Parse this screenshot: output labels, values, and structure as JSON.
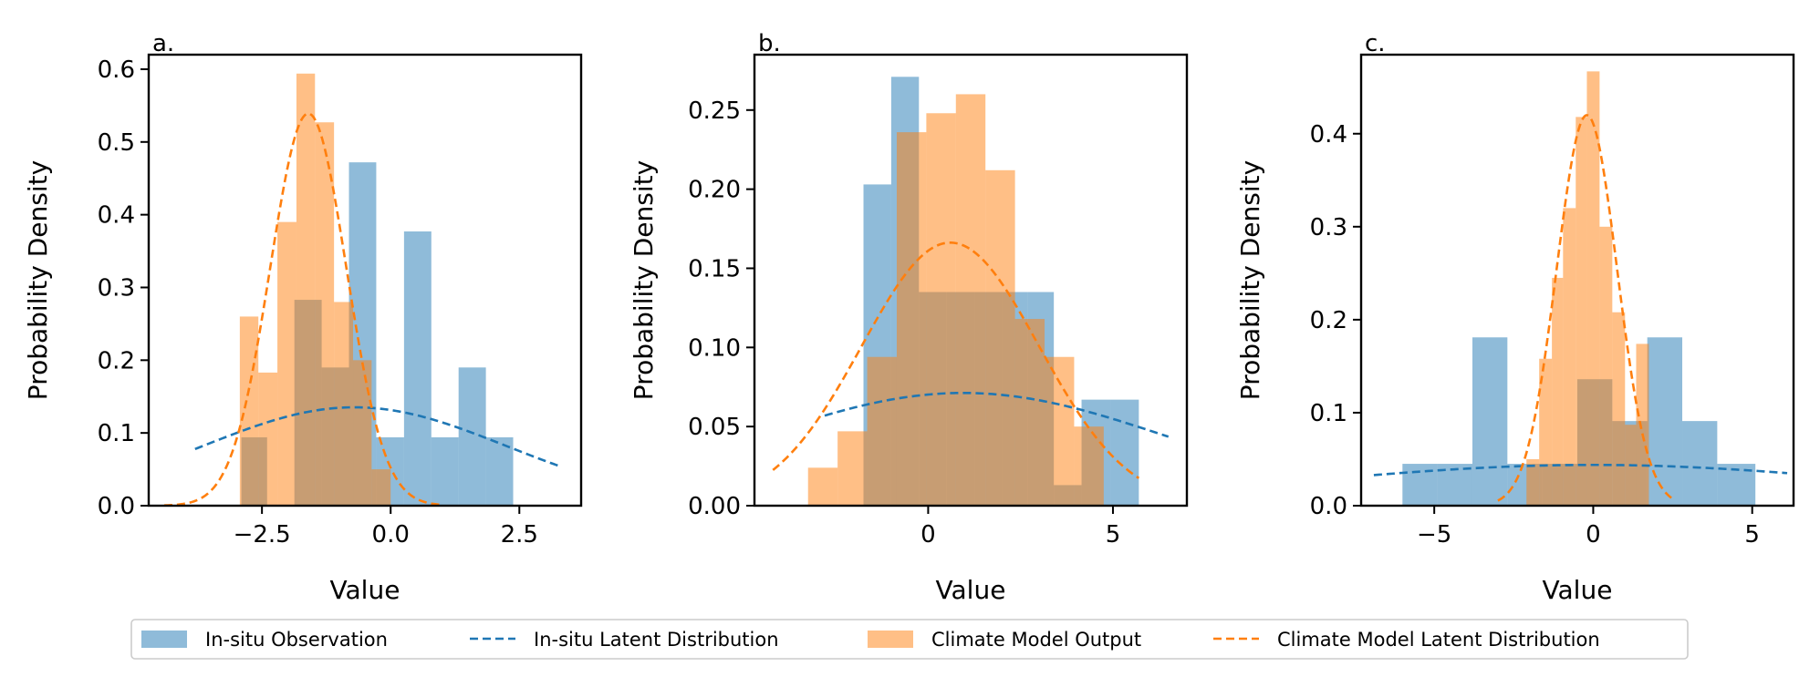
{
  "colors": {
    "insitu": "#1f77b4",
    "model": "#ff7f0e",
    "insitu_hist": "#1f77b4",
    "model_hist": "#ff7f0e",
    "overlap": "#c69c6d"
  },
  "legend": {
    "items": [
      {
        "label": "In-situ Observation",
        "kind": "patch",
        "color": "#1f77b4"
      },
      {
        "label": "In-situ Latent Distribution",
        "kind": "dash",
        "color": "#1f77b4"
      },
      {
        "label": "Climate Model Output",
        "kind": "patch",
        "color": "#ff7f0e"
      },
      {
        "label": "Climate Model Latent Distribution",
        "kind": "dash",
        "color": "#ff7f0e"
      }
    ],
    "placement": "bottom-center"
  },
  "chart_data": [
    {
      "type": "bar",
      "panel": "a.",
      "xlabel": "Value",
      "ylabel": "Probability Density",
      "xlim": [
        -4.7,
        3.7
      ],
      "ylim": [
        0,
        0.62
      ],
      "xticks": [
        -2.5,
        0.0,
        2.5
      ],
      "xtick_labels": [
        "−2.5",
        "0.0",
        "2.5"
      ],
      "yticks": [
        0.0,
        0.1,
        0.2,
        0.3,
        0.4,
        0.5,
        0.6
      ],
      "ytick_labels": [
        "0.0",
        "0.1",
        "0.2",
        "0.3",
        "0.4",
        "0.5",
        "0.6"
      ],
      "series": [
        {
          "name": "In-situ Observation",
          "kind": "hist",
          "bins": [
            [
              -2.9,
              -2.4,
              0.094
            ],
            [
              -2.4,
              -1.87,
              0.0
            ],
            [
              -1.87,
              -1.34,
              0.283
            ],
            [
              -1.34,
              -0.81,
              0.19
            ],
            [
              -0.81,
              -0.28,
              0.472
            ],
            [
              -0.28,
              0.26,
              0.094
            ],
            [
              0.26,
              0.79,
              0.377
            ],
            [
              0.79,
              1.32,
              0.094
            ],
            [
              1.32,
              1.85,
              0.19
            ],
            [
              1.85,
              2.38,
              0.094
            ]
          ]
        },
        {
          "name": "Climate Model Output",
          "kind": "hist",
          "bins": [
            [
              -3.3,
              -2.93,
              0.0
            ],
            [
              -2.93,
              -2.57,
              0.26
            ],
            [
              -2.57,
              -2.2,
              0.183
            ],
            [
              -2.2,
              -1.83,
              0.39
            ],
            [
              -1.83,
              -1.47,
              0.594
            ],
            [
              -1.47,
              -1.1,
              0.527
            ],
            [
              -1.1,
              -0.73,
              0.28
            ],
            [
              -0.73,
              -0.37,
              0.2
            ],
            [
              -0.37,
              0.0,
              0.05
            ]
          ]
        },
        {
          "name": "In-situ Latent Distribution",
          "kind": "curve",
          "mu": -0.7,
          "sigma": 2.95,
          "xrange": [
            -3.8,
            3.3
          ]
        },
        {
          "name": "Climate Model Latent Distribution",
          "kind": "curve",
          "mu": -1.6,
          "sigma": 0.74,
          "xrange": [
            -4.4,
            1.0
          ]
        }
      ]
    },
    {
      "type": "bar",
      "panel": "b.",
      "xlabel": "Value",
      "ylabel": "Probability Density",
      "xlim": [
        -4.7,
        7.0
      ],
      "ylim": [
        0,
        0.285
      ],
      "xticks": [
        0,
        5
      ],
      "xtick_labels": [
        "0",
        "5"
      ],
      "yticks": [
        0.0,
        0.05,
        0.1,
        0.15,
        0.2,
        0.25
      ],
      "ytick_labels": [
        "0.00",
        "0.05",
        "0.10",
        "0.15",
        "0.20",
        "0.25"
      ],
      "series": [
        {
          "name": "In-situ Observation",
          "kind": "hist",
          "bins": [
            [
              -1.75,
              -1.0,
              0.203
            ],
            [
              -1.0,
              -0.25,
              0.271
            ],
            [
              -0.25,
              0.5,
              0.135
            ],
            [
              0.5,
              1.25,
              0.135
            ],
            [
              1.25,
              2.0,
              0.135
            ],
            [
              2.0,
              2.7,
              0.135
            ],
            [
              2.7,
              3.4,
              0.135
            ],
            [
              3.4,
              4.15,
              0.013
            ],
            [
              4.15,
              4.95,
              0.067
            ],
            [
              4.95,
              5.7,
              0.067
            ]
          ]
        },
        {
          "name": "Climate Model Output",
          "kind": "hist",
          "bins": [
            [
              -3.25,
              -2.45,
              0.024
            ],
            [
              -2.45,
              -1.65,
              0.047
            ],
            [
              -1.65,
              -0.85,
              0.094
            ],
            [
              -0.85,
              -0.05,
              0.236
            ],
            [
              -0.05,
              0.75,
              0.248
            ],
            [
              0.75,
              1.55,
              0.26
            ],
            [
              1.55,
              2.35,
              0.212
            ],
            [
              2.35,
              3.15,
              0.118
            ],
            [
              3.15,
              3.95,
              0.094
            ],
            [
              3.95,
              4.75,
              0.05
            ]
          ]
        },
        {
          "name": "In-situ Latent Distribution",
          "kind": "curve",
          "mu": 0.95,
          "sigma": 5.6,
          "xrange": [
            -2.8,
            6.5
          ]
        },
        {
          "name": "Climate Model Latent Distribution",
          "kind": "curve",
          "mu": 0.6,
          "sigma": 2.4,
          "xrange": [
            -4.2,
            5.7
          ]
        }
      ]
    },
    {
      "type": "bar",
      "panel": "c.",
      "xlabel": "Value",
      "ylabel": "Probability Density",
      "xlim": [
        -7.3,
        6.3
      ],
      "ylim": [
        0,
        0.485
      ],
      "xticks": [
        -5,
        0,
        5
      ],
      "xtick_labels": [
        "−5",
        "0",
        "5"
      ],
      "yticks": [
        0.0,
        0.1,
        0.2,
        0.3,
        0.4
      ],
      "ytick_labels": [
        "0.0",
        "0.1",
        "0.2",
        "0.3",
        "0.4"
      ],
      "series": [
        {
          "name": "In-situ Observation",
          "kind": "hist",
          "bins": [
            [
              -6.0,
              -4.9,
              0.045
            ],
            [
              -4.9,
              -3.8,
              0.045
            ],
            [
              -3.8,
              -2.7,
              0.181
            ],
            [
              -2.7,
              -1.6,
              0.045
            ],
            [
              -1.6,
              -0.5,
              0.045
            ],
            [
              -0.5,
              0.6,
              0.136
            ],
            [
              0.6,
              1.7,
              0.091
            ],
            [
              1.7,
              2.8,
              0.181
            ],
            [
              2.8,
              3.9,
              0.091
            ],
            [
              3.9,
              5.1,
              0.045
            ]
          ]
        },
        {
          "name": "Climate Model Output",
          "kind": "hist",
          "bins": [
            [
              -2.1,
              -1.7,
              0.05
            ],
            [
              -1.7,
              -1.3,
              0.158
            ],
            [
              -1.3,
              -0.95,
              0.245
            ],
            [
              -0.95,
              -0.55,
              0.32
            ],
            [
              -0.55,
              -0.2,
              0.418
            ],
            [
              -0.2,
              0.2,
              0.467
            ],
            [
              0.2,
              0.6,
              0.3
            ],
            [
              0.6,
              1.0,
              0.208
            ],
            [
              1.0,
              1.35,
              0.087
            ],
            [
              1.35,
              1.75,
              0.174
            ]
          ]
        },
        {
          "name": "In-situ Latent Distribution",
          "kind": "curve",
          "mu": 0.0,
          "sigma": 9.1,
          "xrange": [
            -6.9,
            6.1
          ]
        },
        {
          "name": "Climate Model Latent Distribution",
          "kind": "curve",
          "mu": -0.2,
          "sigma": 0.95,
          "xrange": [
            -3.0,
            2.5
          ]
        }
      ]
    }
  ]
}
